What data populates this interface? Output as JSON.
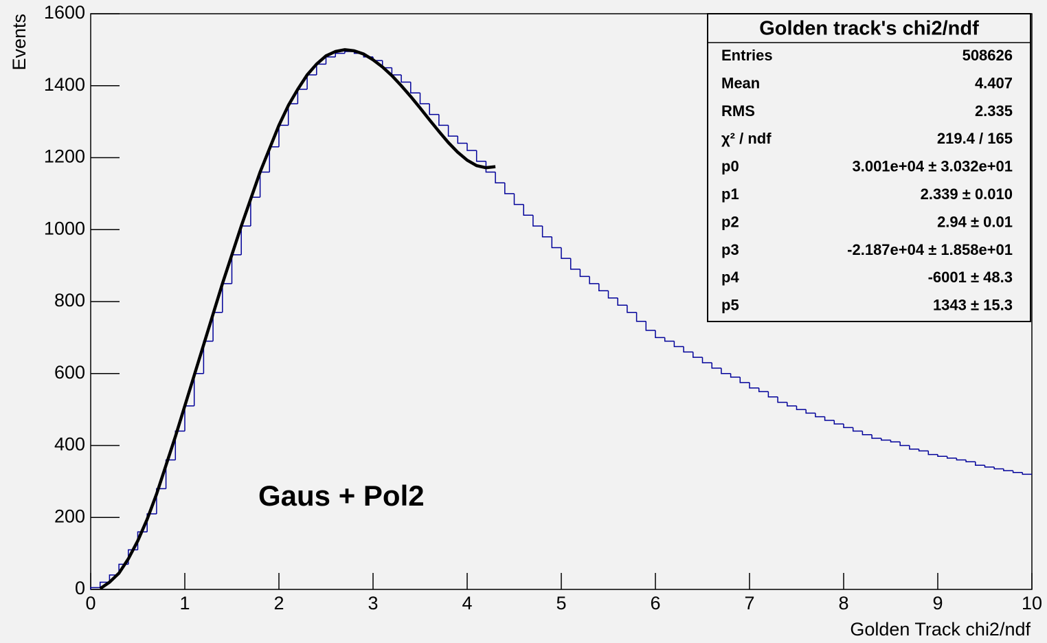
{
  "chart_data": {
    "type": "histogram",
    "xlabel": "Golden Track chi2/ndf",
    "ylabel": "Events",
    "annotation": "Gaus + Pol2",
    "color": "#000099",
    "bins": [
      0,
      0.1,
      0.2,
      0.3,
      0.4,
      0.5,
      0.6,
      0.7,
      0.8,
      0.9,
      1,
      1.1,
      1.2,
      1.3,
      1.4,
      1.5,
      1.6,
      1.7,
      1.8,
      1.9,
      2,
      2.1,
      2.2,
      2.3,
      2.4,
      2.5,
      2.6,
      2.7,
      2.8,
      2.9,
      3,
      3.1,
      3.2,
      3.3,
      3.4,
      3.5,
      3.6,
      3.7,
      3.8,
      3.9,
      4,
      4.1,
      4.2,
      4.3,
      4.4,
      4.5,
      4.6,
      4.7,
      4.8,
      4.9,
      5,
      5.1,
      5.2,
      5.3,
      5.4,
      5.5,
      5.6,
      5.7,
      5.8,
      5.9,
      6,
      6.1,
      6.2,
      6.3,
      6.4,
      6.5,
      6.6,
      6.7,
      6.8,
      6.9,
      7,
      7.1,
      7.2,
      7.3,
      7.4,
      7.5,
      7.6,
      7.7,
      7.8,
      7.9,
      8,
      8.1,
      8.2,
      8.3,
      8.4,
      8.5,
      8.6,
      8.7,
      8.8,
      8.9,
      9,
      9.1,
      9.2,
      9.3,
      9.4,
      9.5,
      9.6,
      9.7,
      9.8,
      9.9,
      10
    ],
    "values": [
      5,
      20,
      40,
      70,
      110,
      160,
      210,
      280,
      360,
      440,
      510,
      600,
      690,
      770,
      850,
      930,
      1010,
      1090,
      1160,
      1230,
      1290,
      1350,
      1390,
      1430,
      1460,
      1480,
      1490,
      1495,
      1490,
      1480,
      1470,
      1450,
      1430,
      1410,
      1380,
      1350,
      1320,
      1290,
      1260,
      1240,
      1220,
      1190,
      1160,
      1130,
      1100,
      1070,
      1040,
      1010,
      980,
      950,
      920,
      890,
      870,
      850,
      830,
      810,
      790,
      770,
      745,
      720,
      700,
      690,
      675,
      660,
      645,
      630,
      615,
      600,
      590,
      575,
      560,
      550,
      535,
      520,
      510,
      500,
      490,
      480,
      470,
      460,
      450,
      440,
      430,
      420,
      415,
      410,
      400,
      390,
      385,
      375,
      370,
      365,
      360,
      355,
      345,
      340,
      335,
      330,
      325,
      320
    ],
    "fit": {
      "color": "#000000",
      "x": [
        0.1,
        0.2,
        0.3,
        0.4,
        0.5,
        0.6,
        0.7,
        0.8,
        0.9,
        1,
        1.1,
        1.2,
        1.3,
        1.4,
        1.5,
        1.6,
        1.7,
        1.8,
        1.9,
        2,
        2.1,
        2.2,
        2.3,
        2.4,
        2.5,
        2.6,
        2.7,
        2.8,
        2.9,
        3,
        3.1,
        3.2,
        3.3,
        3.4,
        3.5,
        3.6,
        3.7,
        3.8,
        3.9,
        4,
        4.1,
        4.2,
        4.3
      ],
      "values": [
        2,
        20,
        45,
        85,
        135,
        195,
        265,
        345,
        425,
        510,
        595,
        680,
        765,
        850,
        930,
        1010,
        1085,
        1160,
        1225,
        1290,
        1345,
        1390,
        1430,
        1460,
        1483,
        1495,
        1500,
        1497,
        1488,
        1472,
        1452,
        1428,
        1400,
        1370,
        1338,
        1305,
        1273,
        1242,
        1215,
        1193,
        1178,
        1172,
        1175
      ]
    },
    "xlim": [
      0,
      10
    ],
    "ylim": [
      0,
      1600
    ],
    "xticks": [
      0,
      1,
      2,
      3,
      4,
      5,
      6,
      7,
      8,
      9,
      10
    ],
    "yticks": [
      0,
      200,
      400,
      600,
      800,
      1000,
      1200,
      1400,
      1600
    ],
    "stats": {
      "title": "Golden track's chi2/ndf",
      "rows": [
        [
          "Entries",
          "508626"
        ],
        [
          "Mean",
          "4.407"
        ],
        [
          "RMS",
          "2.335"
        ],
        [
          "χ² / ndf",
          "219.4 / 165"
        ],
        [
          "p0",
          "3.001e+04 ± 3.032e+01"
        ],
        [
          "p1",
          "2.339 ± 0.010"
        ],
        [
          "p2",
          "2.94 ± 0.01"
        ],
        [
          "p3",
          "-2.187e+04 ± 1.858e+01"
        ],
        [
          "p4",
          "-6001 ± 48.3"
        ],
        [
          "p5",
          "1343 ± 15.3"
        ]
      ]
    }
  }
}
